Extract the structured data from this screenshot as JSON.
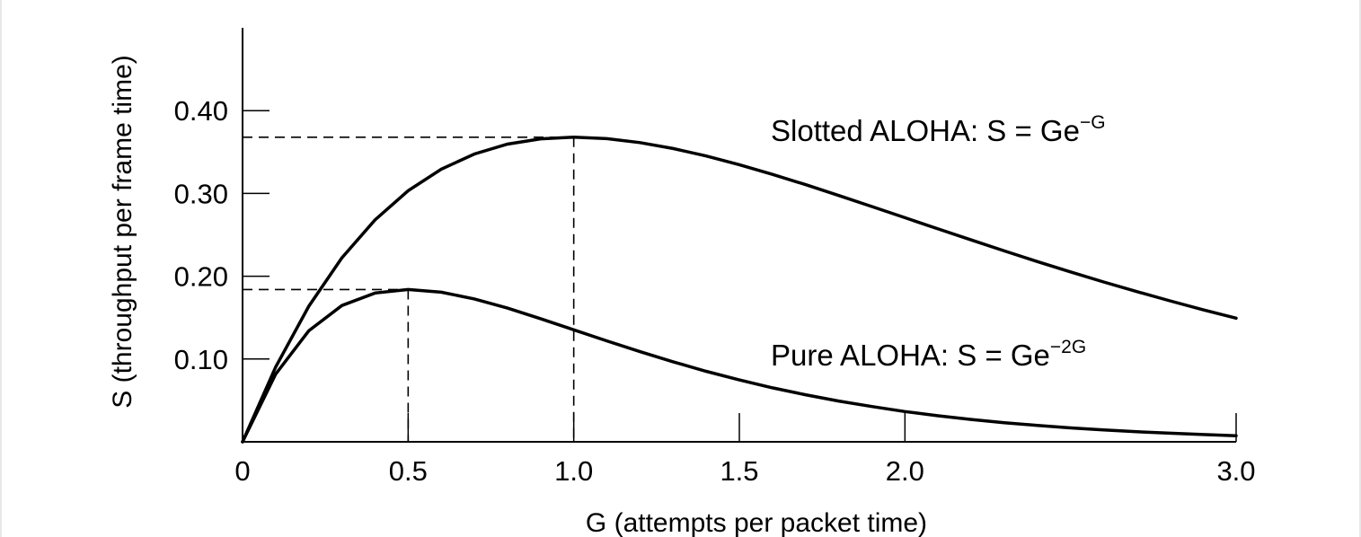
{
  "chart_data": {
    "type": "line",
    "xlabel": "G (attempts per packet time)",
    "ylabel": "S (throughput per frame time)",
    "xlim": [
      0,
      3.0
    ],
    "ylim": [
      0,
      0.5
    ],
    "x_ticks": [
      {
        "value": 0,
        "label": "0"
      },
      {
        "value": 0.5,
        "label": "0.5"
      },
      {
        "value": 1.0,
        "label": "1.0"
      },
      {
        "value": 1.5,
        "label": "1.5"
      },
      {
        "value": 2.0,
        "label": "2.0"
      },
      {
        "value": 3.0,
        "label": "3.0"
      }
    ],
    "y_ticks": [
      {
        "value": 0.1,
        "label": "0.10"
      },
      {
        "value": 0.2,
        "label": "0.20"
      },
      {
        "value": 0.3,
        "label": "0.30"
      },
      {
        "value": 0.4,
        "label": "0.40"
      }
    ],
    "grid": false,
    "series": [
      {
        "formula_prefix": "Slotted ALOHA: S = Ge",
        "formula_exponent": "−G",
        "x": [
          0,
          0.1,
          0.2,
          0.3,
          0.4,
          0.5,
          0.6,
          0.7,
          0.8,
          0.9,
          1.0,
          1.1,
          1.2,
          1.3,
          1.4,
          1.5,
          1.6,
          1.7,
          1.8,
          1.9,
          2.0,
          2.1,
          2.2,
          2.3,
          2.4,
          2.5,
          2.6,
          2.7,
          2.8,
          2.9,
          3.0
        ],
        "y": [
          0,
          0.0905,
          0.1637,
          0.2222,
          0.2681,
          0.3033,
          0.3293,
          0.3476,
          0.3595,
          0.3659,
          0.3679,
          0.3662,
          0.3614,
          0.3542,
          0.3452,
          0.3347,
          0.323,
          0.3106,
          0.2975,
          0.2842,
          0.2707,
          0.2572,
          0.2438,
          0.2306,
          0.2177,
          0.2052,
          0.1931,
          0.1815,
          0.1703,
          0.1595,
          0.1494
        ],
        "peak": {
          "x": 1.0,
          "y": 0.3679
        }
      },
      {
        "formula_prefix": "Pure ALOHA: S = Ge",
        "formula_exponent": "−2G",
        "x": [
          0,
          0.1,
          0.2,
          0.3,
          0.4,
          0.5,
          0.6,
          0.7,
          0.8,
          0.9,
          1.0,
          1.1,
          1.2,
          1.3,
          1.4,
          1.5,
          1.6,
          1.7,
          1.8,
          1.9,
          2.0,
          2.1,
          2.2,
          2.3,
          2.4,
          2.5,
          2.6,
          2.7,
          2.8,
          2.9,
          3.0
        ],
        "y": [
          0,
          0.0819,
          0.1341,
          0.1646,
          0.1797,
          0.1839,
          0.1807,
          0.1726,
          0.1615,
          0.1487,
          0.1353,
          0.1219,
          0.1089,
          0.0966,
          0.0851,
          0.0747,
          0.0652,
          0.0568,
          0.0492,
          0.0426,
          0.0366,
          0.0315,
          0.027,
          0.0231,
          0.0198,
          0.0168,
          0.0143,
          0.0122,
          0.0104,
          0.0088,
          0.0074
        ],
        "peak": {
          "x": 0.5,
          "y": 0.1839
        }
      }
    ]
  }
}
